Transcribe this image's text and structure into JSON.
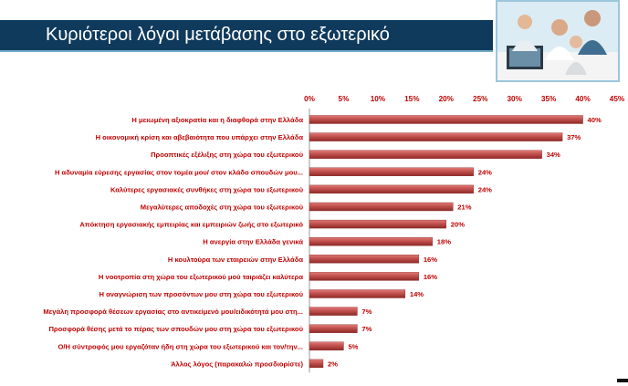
{
  "header": {
    "title": "Κυριότεροι λόγοι μετάβασης στο εξωτερικό"
  },
  "colors": {
    "banner": "#0f3a5c",
    "bar": "#c0504d",
    "bar_dark": "#8e2a28",
    "text": "#c00000"
  },
  "chart_data": {
    "type": "bar",
    "orientation": "horizontal",
    "categories": [
      "Η μειωμένη αξιοκρατία και η διαφθορά στην Ελλάδα",
      "Η οικονομική κρίση και αβεβαιότητα που υπάρχει στην Ελλάδα",
      "Προοπτικές εξέλιξης στη χώρα του εξωτερικού",
      "Η αδυναμία εύρεσης εργασίας στον τομέα μου/ στον κλάδο σπουδών μου...",
      "Καλύτερες εργασιακές συνθήκες στη χώρα του εξωτερικού",
      "Μεγαλύτερες αποδοχές στη χώρα του εξωτερικού",
      "Απόκτηση εργασιακής εμπειρίας και εμπειριών ζωής στο εξωτερικό",
      "Η ανεργία στην Ελλάδα γενικά",
      "Η κουλτούρα των εταιρειών στην Ελλάδα",
      "Η νοοτροπία στη χώρα του εξωτερικού μού ταιριάζει καλύτερα",
      "Η αναγνώριση των προσόντων μου στη χώρα του εξωτερικού",
      "Μεγάλη προσφορά θέσεων εργασίας στο αντικείμενό μου/ειδικότητά μου στη...",
      "Προσφορά θέσης μετά το πέρας των σπουδών μου στη χώρα του εξωτερικού",
      "Ο/Η σύντροφός μου εργαζόταν ήδη στη χώρα του εξωτερικού και τον/την...",
      "Άλλος λόγος (παρακαλώ προσδιορίστε)"
    ],
    "values": [
      40,
      37,
      34,
      24,
      24,
      21,
      20,
      18,
      16,
      16,
      14,
      7,
      7,
      5,
      2
    ],
    "value_labels": [
      "40%",
      "37%",
      "34%",
      "24%",
      "24%",
      "21%",
      "20%",
      "18%",
      "16%",
      "16%",
      "14%",
      "7%",
      "7%",
      "5%",
      "2%"
    ],
    "xlim": [
      0,
      45
    ],
    "xticks": [
      "0%",
      "5%",
      "10%",
      "15%",
      "20%",
      "25%",
      "30%",
      "35%",
      "40%",
      "45%"
    ],
    "xaxis_position": "top"
  }
}
